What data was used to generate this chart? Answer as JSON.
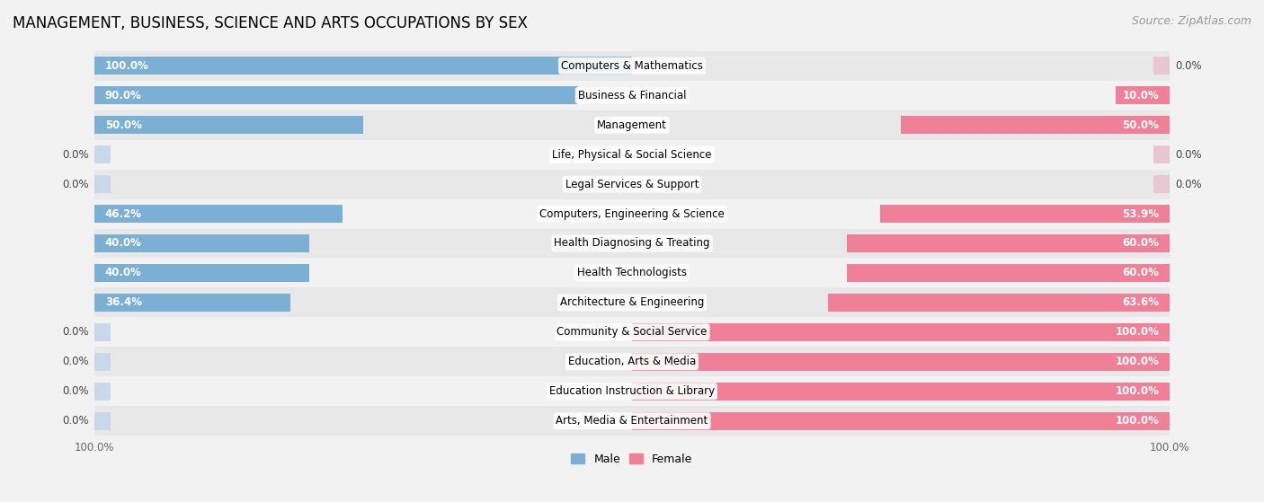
{
  "title": "MANAGEMENT, BUSINESS, SCIENCE AND ARTS OCCUPATIONS BY SEX",
  "source": "Source: ZipAtlas.com",
  "categories": [
    "Computers & Mathematics",
    "Business & Financial",
    "Management",
    "Life, Physical & Social Science",
    "Legal Services & Support",
    "Computers, Engineering & Science",
    "Health Diagnosing & Treating",
    "Health Technologists",
    "Architecture & Engineering",
    "Community & Social Service",
    "Education, Arts & Media",
    "Education Instruction & Library",
    "Arts, Media & Entertainment"
  ],
  "male": [
    100.0,
    90.0,
    50.0,
    0.0,
    0.0,
    46.2,
    40.0,
    40.0,
    36.4,
    0.0,
    0.0,
    0.0,
    0.0
  ],
  "female": [
    0.0,
    10.0,
    50.0,
    0.0,
    0.0,
    53.9,
    60.0,
    60.0,
    63.6,
    100.0,
    100.0,
    100.0,
    100.0
  ],
  "male_color": "#7bafd4",
  "female_color": "#f08098",
  "bg_color": "#f2f2f2",
  "row_color_even": "#e8e8e8",
  "row_color_odd": "#f2f2f2",
  "title_fontsize": 12,
  "source_fontsize": 9,
  "label_fontsize": 8.5,
  "category_fontsize": 8.5,
  "bar_height": 0.6,
  "figsize": [
    14.06,
    5.59
  ]
}
